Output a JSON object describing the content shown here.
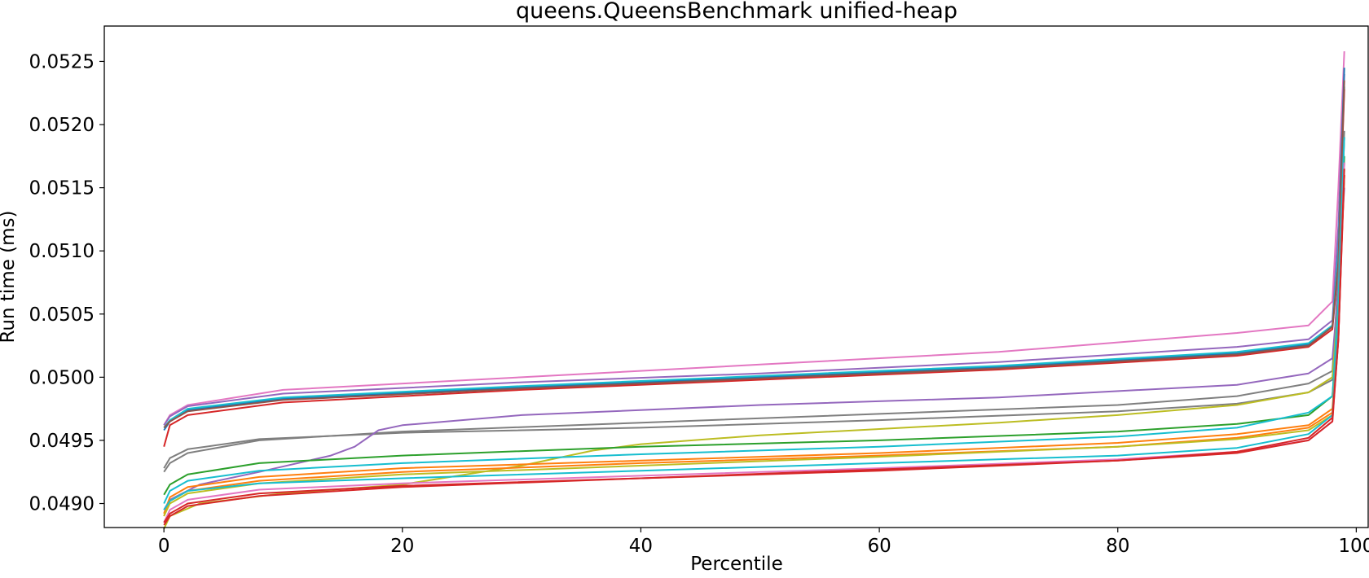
{
  "chart_data": {
    "type": "line",
    "title": "queens.QueensBenchmark unified-heap",
    "xlabel": "Percentile",
    "ylabel": "Run time (ms)",
    "xlim": [
      -5,
      101
    ],
    "ylim": [
      0.04881,
      0.05278
    ],
    "xticks": [
      0,
      20,
      40,
      60,
      80,
      100
    ],
    "xtick_labels": [
      "0",
      "20",
      "40",
      "60",
      "80",
      "100"
    ],
    "yticks": [
      0.049,
      0.0495,
      0.05,
      0.0505,
      0.051,
      0.0515,
      0.052,
      0.0525
    ],
    "ytick_labels": [
      "0.0490",
      "0.0495",
      "0.0500",
      "0.0505",
      "0.0510",
      "0.0515",
      "0.0520",
      "0.0525"
    ],
    "grid": false,
    "legend": "none",
    "series": [
      {
        "color": "#e377c2",
        "values": [
          [
            0,
            0.04962
          ],
          [
            0.5,
            0.0497
          ],
          [
            2,
            0.04978
          ],
          [
            10,
            0.0499
          ],
          [
            30,
            0.05
          ],
          [
            50,
            0.0501
          ],
          [
            70,
            0.0502
          ],
          [
            90,
            0.05035
          ],
          [
            96,
            0.05041
          ],
          [
            98,
            0.0506
          ],
          [
            98.5,
            0.0515
          ],
          [
            99,
            0.05258
          ]
        ]
      },
      {
        "color": "#9467bd",
        "values": [
          [
            0,
            0.04962
          ],
          [
            0.5,
            0.04969
          ],
          [
            2,
            0.04977
          ],
          [
            10,
            0.04987
          ],
          [
            30,
            0.04996
          ],
          [
            50,
            0.05003
          ],
          [
            70,
            0.05012
          ],
          [
            90,
            0.05024
          ],
          [
            96,
            0.0503
          ],
          [
            98,
            0.05045
          ],
          [
            98.5,
            0.0512
          ],
          [
            99,
            0.0524
          ]
        ]
      },
      {
        "color": "#1f77b4",
        "values": [
          [
            0,
            0.04958
          ],
          [
            0.5,
            0.04965
          ],
          [
            2,
            0.04974
          ],
          [
            10,
            0.04983
          ],
          [
            30,
            0.04992
          ],
          [
            50,
            0.05
          ],
          [
            70,
            0.05008
          ],
          [
            90,
            0.05019
          ],
          [
            96,
            0.05026
          ],
          [
            98,
            0.0504
          ],
          [
            98.5,
            0.051
          ],
          [
            99,
            0.05245
          ]
        ]
      },
      {
        "color": "#17becf",
        "values": [
          [
            0,
            0.0496
          ],
          [
            0.5,
            0.04966
          ],
          [
            2,
            0.04975
          ],
          [
            10,
            0.04984
          ],
          [
            30,
            0.04993
          ],
          [
            50,
            0.05001
          ],
          [
            70,
            0.05009
          ],
          [
            90,
            0.0502
          ],
          [
            96,
            0.05027
          ],
          [
            98,
            0.05041
          ],
          [
            98.5,
            0.051
          ],
          [
            99,
            0.0523
          ]
        ]
      },
      {
        "color": "#d62728",
        "values": [
          [
            0,
            0.04945
          ],
          [
            0.5,
            0.04962
          ],
          [
            2,
            0.0497
          ],
          [
            10,
            0.0498
          ],
          [
            30,
            0.0499
          ],
          [
            50,
            0.04998
          ],
          [
            70,
            0.05006
          ],
          [
            90,
            0.05017
          ],
          [
            96,
            0.05024
          ],
          [
            98,
            0.05038
          ],
          [
            98.5,
            0.0509
          ],
          [
            99,
            0.05228
          ]
        ]
      },
      {
        "color": "#8c564b",
        "values": [
          [
            0,
            0.0496
          ],
          [
            0.5,
            0.04965
          ],
          [
            2,
            0.04973
          ],
          [
            10,
            0.04982
          ],
          [
            30,
            0.04991
          ],
          [
            50,
            0.04999
          ],
          [
            70,
            0.05007
          ],
          [
            90,
            0.05018
          ],
          [
            96,
            0.05025
          ],
          [
            98,
            0.0504
          ],
          [
            98.5,
            0.0509
          ],
          [
            99,
            0.05235
          ]
        ]
      },
      {
        "color": "#7f7f7f",
        "values": [
          [
            0,
            0.04925
          ],
          [
            0.5,
            0.04932
          ],
          [
            2,
            0.0494
          ],
          [
            8,
            0.0495
          ],
          [
            20,
            0.04957
          ],
          [
            40,
            0.04964
          ],
          [
            60,
            0.04971
          ],
          [
            80,
            0.04978
          ],
          [
            90,
            0.04985
          ],
          [
            96,
            0.04995
          ],
          [
            98,
            0.05005
          ],
          [
            98.5,
            0.0508
          ],
          [
            99,
            0.05195
          ]
        ]
      },
      {
        "color": "#7f7f7f",
        "values": [
          [
            0,
            0.04928
          ],
          [
            0.5,
            0.04936
          ],
          [
            2,
            0.04943
          ],
          [
            8,
            0.04951
          ],
          [
            20,
            0.04956
          ],
          [
            40,
            0.0496
          ],
          [
            60,
            0.04966
          ],
          [
            80,
            0.04973
          ],
          [
            90,
            0.04979
          ],
          [
            96,
            0.04988
          ],
          [
            98,
            0.04998
          ],
          [
            98.5,
            0.0507
          ],
          [
            99,
            0.0519
          ]
        ]
      },
      {
        "color": "#9467bd",
        "values": [
          [
            0,
            0.04895
          ],
          [
            0.5,
            0.04903
          ],
          [
            3,
            0.04915
          ],
          [
            8,
            0.04925
          ],
          [
            14,
            0.04938
          ],
          [
            16,
            0.04945
          ],
          [
            18,
            0.04958
          ],
          [
            20,
            0.04962
          ],
          [
            30,
            0.0497
          ],
          [
            50,
            0.04978
          ],
          [
            70,
            0.04984
          ],
          [
            90,
            0.04994
          ],
          [
            96,
            0.05003
          ],
          [
            98,
            0.05015
          ],
          [
            98.5,
            0.0507
          ],
          [
            99,
            0.0515
          ]
        ]
      },
      {
        "color": "#bcbd22",
        "values": [
          [
            0,
            0.0488
          ],
          [
            0.5,
            0.0489
          ],
          [
            3,
            0.049
          ],
          [
            10,
            0.04908
          ],
          [
            20,
            0.04915
          ],
          [
            30,
            0.0493
          ],
          [
            36,
            0.04942
          ],
          [
            40,
            0.04947
          ],
          [
            50,
            0.04954
          ],
          [
            60,
            0.04959
          ],
          [
            70,
            0.04964
          ],
          [
            80,
            0.0497
          ],
          [
            90,
            0.04978
          ],
          [
            96,
            0.04988
          ],
          [
            98,
            0.05
          ],
          [
            98.5,
            0.0506
          ],
          [
            99,
            0.05165
          ]
        ]
      },
      {
        "color": "#2ca02c",
        "values": [
          [
            0,
            0.04907
          ],
          [
            0.5,
            0.04915
          ],
          [
            2,
            0.04923
          ],
          [
            8,
            0.04932
          ],
          [
            20,
            0.04938
          ],
          [
            40,
            0.04945
          ],
          [
            60,
            0.0495
          ],
          [
            80,
            0.04957
          ],
          [
            90,
            0.04963
          ],
          [
            96,
            0.0497
          ],
          [
            98,
            0.04985
          ],
          [
            98.5,
            0.0505
          ],
          [
            99,
            0.05175
          ]
        ]
      },
      {
        "color": "#17becf",
        "values": [
          [
            0,
            0.049
          ],
          [
            0.5,
            0.0491
          ],
          [
            2,
            0.04918
          ],
          [
            8,
            0.04926
          ],
          [
            20,
            0.04932
          ],
          [
            40,
            0.04939
          ],
          [
            60,
            0.04945
          ],
          [
            80,
            0.04953
          ],
          [
            90,
            0.0496
          ],
          [
            96,
            0.04972
          ],
          [
            98,
            0.04985
          ],
          [
            98.5,
            0.0506
          ],
          [
            99,
            0.0519
          ]
        ]
      },
      {
        "color": "#ff7f0e",
        "values": [
          [
            0,
            0.04892
          ],
          [
            0.5,
            0.04905
          ],
          [
            2,
            0.04913
          ],
          [
            8,
            0.04921
          ],
          [
            20,
            0.04928
          ],
          [
            40,
            0.04934
          ],
          [
            60,
            0.0494
          ],
          [
            80,
            0.04948
          ],
          [
            90,
            0.04955
          ],
          [
            96,
            0.04962
          ],
          [
            98,
            0.04975
          ],
          [
            98.5,
            0.0504
          ],
          [
            99,
            0.0517
          ]
        ]
      },
      {
        "color": "#ff7f0e",
        "values": [
          [
            0,
            0.0489
          ],
          [
            0.5,
            0.04902
          ],
          [
            2,
            0.0491
          ],
          [
            8,
            0.04918
          ],
          [
            20,
            0.04925
          ],
          [
            40,
            0.04932
          ],
          [
            60,
            0.04938
          ],
          [
            80,
            0.04945
          ],
          [
            90,
            0.04952
          ],
          [
            96,
            0.0496
          ],
          [
            98,
            0.04972
          ],
          [
            98.5,
            0.0504
          ],
          [
            99,
            0.0516
          ]
        ]
      },
      {
        "color": "#bcbd22",
        "values": [
          [
            0,
            0.0489
          ],
          [
            0.5,
            0.049
          ],
          [
            2,
            0.04908
          ],
          [
            8,
            0.04916
          ],
          [
            20,
            0.04923
          ],
          [
            40,
            0.0493
          ],
          [
            60,
            0.04937
          ],
          [
            80,
            0.04945
          ],
          [
            90,
            0.04951
          ],
          [
            96,
            0.04958
          ],
          [
            98,
            0.0497
          ],
          [
            98.5,
            0.0504
          ],
          [
            99,
            0.0516
          ]
        ]
      },
      {
        "color": "#17becf",
        "values": [
          [
            0,
            0.04895
          ],
          [
            0.5,
            0.04902
          ],
          [
            2,
            0.0491
          ],
          [
            8,
            0.04916
          ],
          [
            20,
            0.0492
          ],
          [
            40,
            0.04926
          ],
          [
            60,
            0.04932
          ],
          [
            80,
            0.04938
          ],
          [
            90,
            0.04944
          ],
          [
            96,
            0.04955
          ],
          [
            98,
            0.0497
          ],
          [
            98.5,
            0.0504
          ],
          [
            99,
            0.0517
          ]
        ]
      },
      {
        "color": "#e377c2",
        "values": [
          [
            0,
            0.04885
          ],
          [
            0.5,
            0.04895
          ],
          [
            2,
            0.04903
          ],
          [
            8,
            0.04911
          ],
          [
            20,
            0.04916
          ],
          [
            40,
            0.04922
          ],
          [
            60,
            0.04928
          ],
          [
            80,
            0.04935
          ],
          [
            90,
            0.04941
          ],
          [
            96,
            0.0495
          ],
          [
            98,
            0.04965
          ],
          [
            98.5,
            0.0503
          ],
          [
            99,
            0.0517
          ]
        ]
      },
      {
        "color": "#d62728",
        "values": [
          [
            0,
            0.04885
          ],
          [
            0.5,
            0.04892
          ],
          [
            2,
            0.049
          ],
          [
            8,
            0.04908
          ],
          [
            20,
            0.04914
          ],
          [
            40,
            0.0492
          ],
          [
            60,
            0.04926
          ],
          [
            80,
            0.04934
          ],
          [
            90,
            0.0494
          ],
          [
            96,
            0.0495
          ],
          [
            98,
            0.04965
          ],
          [
            98.5,
            0.0503
          ],
          [
            99,
            0.0516
          ]
        ]
      },
      {
        "color": "#d62728",
        "values": [
          [
            0,
            0.04883
          ],
          [
            0.5,
            0.0489
          ],
          [
            2,
            0.04898
          ],
          [
            8,
            0.04906
          ],
          [
            20,
            0.04913
          ],
          [
            40,
            0.0492
          ],
          [
            60,
            0.04927
          ],
          [
            80,
            0.04934
          ],
          [
            90,
            0.04941
          ],
          [
            96,
            0.04952
          ],
          [
            98,
            0.04968
          ],
          [
            98.5,
            0.0503
          ],
          [
            99,
            0.05165
          ]
        ]
      }
    ]
  }
}
